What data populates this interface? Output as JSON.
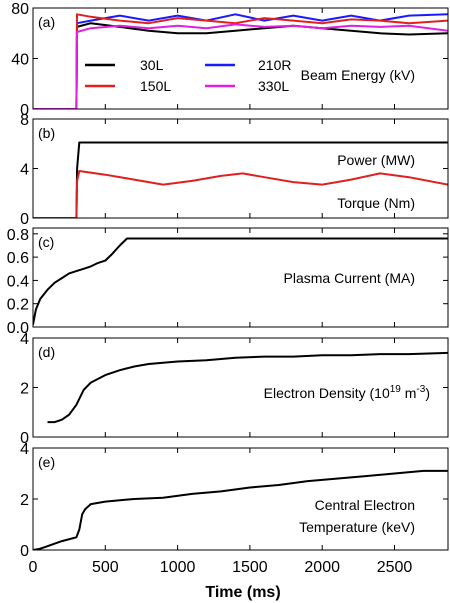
{
  "chart_data": {
    "type": "line",
    "x_axis": {
      "label": "Time (ms)",
      "range": [
        0,
        2870
      ],
      "ticks": [
        0,
        500,
        1000,
        1500,
        2000,
        2500
      ],
      "tick_labels": [
        "0",
        "500",
        "1000",
        "1500",
        "2000",
        "2500"
      ]
    },
    "panels": [
      {
        "panel_label": "(a)",
        "annotation_lines": [
          "Beam Energy (kV)"
        ],
        "y_range": [
          0,
          80
        ],
        "y_ticks": [
          0,
          40,
          80
        ],
        "y_tick_labels": [
          "0",
          "40",
          "80"
        ],
        "legend": [
          {
            "name": "30L",
            "color": "#000000"
          },
          {
            "name": "210R",
            "color": "#1a1aff"
          },
          {
            "name": "150L",
            "color": "#e02020"
          },
          {
            "name": "330L",
            "color": "#e020e0"
          }
        ],
        "series": [
          {
            "name": "30L",
            "color": "#000000",
            "x": [
              0,
              300,
              304,
              400,
              600,
              800,
              1000,
              1200,
              1400,
              1600,
              1800,
              2000,
              2200,
              2400,
              2600,
              2870
            ],
            "y": [
              0,
              0,
              65,
              68,
              65,
              62,
              60,
              60,
              62,
              64,
              66,
              64,
              62,
              60,
              59,
              60
            ]
          },
          {
            "name": "210R",
            "color": "#1a1aff",
            "x": [
              0,
              300,
              304,
              400,
              600,
              800,
              1000,
              1200,
              1400,
              1600,
              1800,
              2000,
              2200,
              2400,
              2600,
              2870
            ],
            "y": [
              0,
              0,
              68,
              70,
              74,
              70,
              74,
              70,
              75,
              70,
              74,
              70,
              74,
              70,
              74,
              75
            ]
          },
          {
            "name": "150L",
            "color": "#e02020",
            "x": [
              0,
              300,
              304,
              400,
              600,
              800,
              1000,
              1200,
              1400,
              1600,
              1800,
              2000,
              2200,
              2400,
              2600,
              2870
            ],
            "y": [
              0,
              0,
              75,
              73,
              70,
              68,
              72,
              70,
              68,
              72,
              70,
              68,
              71,
              70,
              68,
              70
            ]
          },
          {
            "name": "330L",
            "color": "#e020e0",
            "x": [
              0,
              300,
              304,
              400,
              600,
              800,
              1000,
              1200,
              1400,
              1600,
              1800,
              2000,
              2200,
              2400,
              2600,
              2870
            ],
            "y": [
              0,
              0,
              61,
              64,
              66,
              64,
              66,
              64,
              67,
              65,
              66,
              64,
              66,
              65,
              66,
              62
            ]
          }
        ]
      },
      {
        "panel_label": "(b)",
        "annotation_lines": [
          "Power (MW)",
          "Torque (Nm)"
        ],
        "y_range": [
          0,
          8
        ],
        "y_ticks": [
          0,
          4,
          8
        ],
        "y_tick_labels": [
          "0",
          "4",
          "8"
        ],
        "series": [
          {
            "name": "Power (MW)",
            "color": "#000000",
            "x": [
              0,
              300,
              305,
              320,
              600,
              1000,
              1500,
              2000,
              2500,
              2870
            ],
            "y": [
              0,
              0,
              4.0,
              6.1,
              6.1,
              6.1,
              6.1,
              6.1,
              6.1,
              6.1
            ]
          },
          {
            "name": "Torque (Nm)",
            "color": "#e02020",
            "x": [
              0,
              300,
              305,
              320,
              500,
              700,
              900,
              1100,
              1300,
              1450,
              1600,
              1800,
              2000,
              2200,
              2400,
              2600,
              2870
            ],
            "y": [
              0,
              0,
              3.0,
              3.8,
              3.5,
              3.1,
              2.7,
              3.0,
              3.4,
              3.6,
              3.3,
              2.9,
              2.7,
              3.1,
              3.6,
              3.3,
              2.7
            ]
          }
        ]
      },
      {
        "panel_label": "(c)",
        "annotation_lines": [
          "Plasma Current (MA)"
        ],
        "y_range": [
          0,
          0.85
        ],
        "y_ticks": [
          0,
          0.2,
          0.4,
          0.6,
          0.8
        ],
        "y_tick_labels": [
          "0.0",
          "0.2",
          "0.4",
          "0.6",
          "0.8"
        ],
        "series": [
          {
            "name": "Plasma Current (MA)",
            "color": "#000000",
            "x": [
              0,
              20,
              50,
              100,
              150,
              200,
              250,
              300,
              350,
              400,
              450,
              500,
              550,
              600,
              650,
              700,
              1000,
              1500,
              2000,
              2500,
              2870
            ],
            "y": [
              0.02,
              0.15,
              0.24,
              0.32,
              0.38,
              0.42,
              0.46,
              0.48,
              0.5,
              0.52,
              0.55,
              0.57,
              0.63,
              0.7,
              0.76,
              0.76,
              0.76,
              0.76,
              0.76,
              0.76,
              0.76
            ]
          }
        ]
      },
      {
        "panel_label": "(d)",
        "annotation_lines": [
          "Electron Density (10",
          "19",
          " m",
          "-3",
          ")"
        ],
        "y_range": [
          0,
          4
        ],
        "y_ticks": [
          0,
          2,
          4
        ],
        "y_tick_labels": [
          "0",
          "2",
          "4"
        ],
        "series": [
          {
            "name": "Electron Density",
            "color": "#000000",
            "x": [
              100,
              150,
              200,
              250,
              300,
              350,
              400,
              500,
              600,
              700,
              800,
              1000,
              1200,
              1400,
              1600,
              1800,
              2000,
              2200,
              2400,
              2600,
              2870
            ],
            "y": [
              0.6,
              0.6,
              0.7,
              0.9,
              1.3,
              1.9,
              2.2,
              2.5,
              2.7,
              2.85,
              2.95,
              3.05,
              3.1,
              3.2,
              3.25,
              3.25,
              3.3,
              3.3,
              3.35,
              3.35,
              3.4
            ]
          }
        ]
      },
      {
        "panel_label": "(e)",
        "annotation_lines": [
          "Central Electron",
          "Temperature (keV)"
        ],
        "y_range": [
          0,
          4
        ],
        "y_ticks": [
          0,
          2,
          4
        ],
        "y_tick_labels": [
          "0",
          "2",
          "4"
        ],
        "series": [
          {
            "name": "Central Electron Temperature (keV)",
            "color": "#000000",
            "x": [
              0,
              50,
              100,
              200,
              300,
              320,
              340,
              360,
              400,
              500,
              700,
              900,
              1100,
              1300,
              1500,
              1700,
              1900,
              2100,
              2300,
              2500,
              2700,
              2870
            ],
            "y": [
              0.0,
              0.05,
              0.15,
              0.35,
              0.5,
              0.8,
              1.4,
              1.6,
              1.8,
              1.9,
              2.0,
              2.05,
              2.2,
              2.3,
              2.45,
              2.55,
              2.7,
              2.8,
              2.9,
              3.0,
              3.1,
              3.1
            ]
          }
        ]
      }
    ]
  }
}
